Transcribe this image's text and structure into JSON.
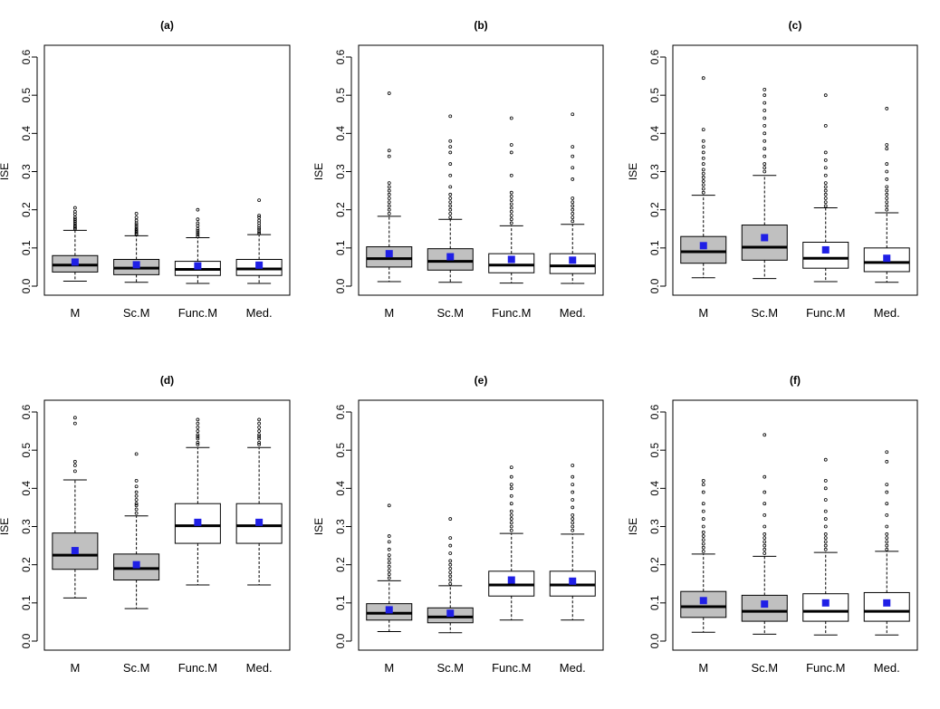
{
  "figure": {
    "colors": {
      "box_gray": "#c0c0c0",
      "box_white": "#ffffff",
      "mean_marker": "#1f1fe6",
      "line": "#000000"
    }
  },
  "chart_data": [
    {
      "type": "boxplot",
      "title": "(a)",
      "xlabel": "",
      "ylabel": "ISE",
      "ylim": [
        0,
        0.6
      ],
      "yticks": [
        "0.0",
        "0.1",
        "0.2",
        "0.3",
        "0.4",
        "0.5",
        "0.6"
      ],
      "categories": [
        "M",
        "Sc.M",
        "Func.M",
        "Med."
      ],
      "boxes": [
        {
          "fill": "gray",
          "whislo": 0.013,
          "q1": 0.037,
          "med": 0.055,
          "q3": 0.08,
          "whishi": 0.146,
          "mean": 0.063,
          "fliers": [
            0.15,
            0.153,
            0.156,
            0.16,
            0.165,
            0.17,
            0.175,
            0.18,
            0.188,
            0.195,
            0.205
          ]
        },
        {
          "fill": "gray",
          "whislo": 0.01,
          "q1": 0.03,
          "med": 0.047,
          "q3": 0.07,
          "whishi": 0.132,
          "mean": 0.056,
          "fliers": [
            0.135,
            0.138,
            0.142,
            0.146,
            0.15,
            0.155,
            0.16,
            0.165,
            0.172,
            0.18,
            0.19
          ]
        },
        {
          "fill": "white",
          "whislo": 0.007,
          "q1": 0.028,
          "med": 0.044,
          "q3": 0.065,
          "whishi": 0.127,
          "mean": 0.053,
          "fliers": [
            0.13,
            0.135,
            0.14,
            0.145,
            0.15,
            0.158,
            0.165,
            0.175,
            0.2
          ]
        },
        {
          "fill": "white",
          "whislo": 0.007,
          "q1": 0.028,
          "med": 0.045,
          "q3": 0.07,
          "whishi": 0.135,
          "mean": 0.055,
          "fliers": [
            0.138,
            0.142,
            0.148,
            0.152,
            0.158,
            0.165,
            0.172,
            0.18,
            0.185,
            0.225
          ]
        }
      ]
    },
    {
      "type": "boxplot",
      "title": "(b)",
      "xlabel": "",
      "ylabel": "ISE",
      "ylim": [
        0,
        0.6
      ],
      "yticks": [
        "0.0",
        "0.1",
        "0.2",
        "0.3",
        "0.4",
        "0.5",
        "0.6"
      ],
      "categories": [
        "M",
        "Sc.M",
        "Func.M",
        "Med."
      ],
      "boxes": [
        {
          "fill": "gray",
          "whislo": 0.012,
          "q1": 0.05,
          "med": 0.072,
          "q3": 0.103,
          "whishi": 0.183,
          "mean": 0.085,
          "fliers": [
            0.19,
            0.2,
            0.21,
            0.22,
            0.23,
            0.24,
            0.25,
            0.26,
            0.27,
            0.34,
            0.355,
            0.505
          ]
        },
        {
          "fill": "gray",
          "whislo": 0.01,
          "q1": 0.042,
          "med": 0.065,
          "q3": 0.098,
          "whishi": 0.175,
          "mean": 0.077,
          "fliers": [
            0.18,
            0.19,
            0.2,
            0.21,
            0.22,
            0.23,
            0.24,
            0.26,
            0.29,
            0.32,
            0.35,
            0.365,
            0.38,
            0.445
          ]
        },
        {
          "fill": "white",
          "whislo": 0.008,
          "q1": 0.035,
          "med": 0.055,
          "q3": 0.085,
          "whishi": 0.158,
          "mean": 0.07,
          "fliers": [
            0.165,
            0.175,
            0.185,
            0.195,
            0.205,
            0.215,
            0.225,
            0.235,
            0.245,
            0.29,
            0.35,
            0.37,
            0.44
          ]
        },
        {
          "fill": "white",
          "whislo": 0.007,
          "q1": 0.033,
          "med": 0.053,
          "q3": 0.085,
          "whishi": 0.162,
          "mean": 0.068,
          "fliers": [
            0.17,
            0.18,
            0.19,
            0.2,
            0.21,
            0.22,
            0.23,
            0.28,
            0.31,
            0.34,
            0.365,
            0.45
          ]
        }
      ]
    },
    {
      "type": "boxplot",
      "title": "(c)",
      "xlabel": "",
      "ylabel": "ISE",
      "ylim": [
        0,
        0.6
      ],
      "yticks": [
        "0.0",
        "0.1",
        "0.2",
        "0.3",
        "0.4",
        "0.5",
        "0.6"
      ],
      "categories": [
        "M",
        "Sc.M",
        "Func.M",
        "Med."
      ],
      "boxes": [
        {
          "fill": "gray",
          "whislo": 0.022,
          "q1": 0.06,
          "med": 0.09,
          "q3": 0.13,
          "whishi": 0.238,
          "mean": 0.106,
          "fliers": [
            0.245,
            0.255,
            0.265,
            0.275,
            0.285,
            0.295,
            0.305,
            0.32,
            0.335,
            0.35,
            0.365,
            0.38,
            0.41,
            0.545
          ]
        },
        {
          "fill": "gray",
          "whislo": 0.02,
          "q1": 0.068,
          "med": 0.102,
          "q3": 0.16,
          "whishi": 0.29,
          "mean": 0.127,
          "fliers": [
            0.3,
            0.31,
            0.32,
            0.34,
            0.36,
            0.38,
            0.4,
            0.42,
            0.44,
            0.46,
            0.48,
            0.5,
            0.515
          ]
        },
        {
          "fill": "white",
          "whislo": 0.012,
          "q1": 0.047,
          "med": 0.073,
          "q3": 0.115,
          "whishi": 0.205,
          "mean": 0.095,
          "fliers": [
            0.21,
            0.22,
            0.23,
            0.24,
            0.25,
            0.26,
            0.27,
            0.29,
            0.31,
            0.33,
            0.35,
            0.42,
            0.5
          ]
        },
        {
          "fill": "white",
          "whislo": 0.01,
          "q1": 0.038,
          "med": 0.062,
          "q3": 0.1,
          "whishi": 0.192,
          "mean": 0.073,
          "fliers": [
            0.2,
            0.21,
            0.22,
            0.23,
            0.24,
            0.25,
            0.26,
            0.28,
            0.3,
            0.32,
            0.36,
            0.37,
            0.465
          ]
        }
      ]
    },
    {
      "type": "boxplot",
      "title": "(d)",
      "xlabel": "",
      "ylabel": "ISE",
      "ylim": [
        0,
        0.6
      ],
      "yticks": [
        "0.0",
        "0.1",
        "0.2",
        "0.3",
        "0.4",
        "0.5",
        "0.6"
      ],
      "categories": [
        "M",
        "Sc.M",
        "Func.M",
        "Med."
      ],
      "boxes": [
        {
          "fill": "gray",
          "whislo": 0.113,
          "q1": 0.188,
          "med": 0.225,
          "q3": 0.283,
          "whishi": 0.422,
          "mean": 0.237,
          "fliers": [
            0.445,
            0.46,
            0.47,
            0.57,
            0.585
          ]
        },
        {
          "fill": "gray",
          "whislo": 0.085,
          "q1": 0.16,
          "med": 0.19,
          "q3": 0.228,
          "whishi": 0.328,
          "mean": 0.2,
          "fliers": [
            0.335,
            0.345,
            0.355,
            0.36,
            0.37,
            0.38,
            0.39,
            0.405,
            0.42,
            0.49
          ]
        },
        {
          "fill": "white",
          "whislo": 0.147,
          "q1": 0.256,
          "med": 0.302,
          "q3": 0.36,
          "whishi": 0.507,
          "mean": 0.311,
          "fliers": [
            0.515,
            0.52,
            0.53,
            0.535,
            0.54,
            0.55,
            0.56,
            0.57,
            0.58
          ]
        },
        {
          "fill": "white",
          "whislo": 0.147,
          "q1": 0.256,
          "med": 0.302,
          "q3": 0.36,
          "whishi": 0.507,
          "mean": 0.311,
          "fliers": [
            0.515,
            0.52,
            0.53,
            0.535,
            0.54,
            0.55,
            0.56,
            0.57,
            0.58
          ]
        }
      ]
    },
    {
      "type": "boxplot",
      "title": "(e)",
      "xlabel": "",
      "ylabel": "ISE",
      "ylim": [
        0,
        0.6
      ],
      "yticks": [
        "0.0",
        "0.1",
        "0.2",
        "0.3",
        "0.4",
        "0.5",
        "0.6"
      ],
      "categories": [
        "M",
        "Sc.M",
        "Func.M",
        "Med."
      ],
      "boxes": [
        {
          "fill": "gray",
          "whislo": 0.025,
          "q1": 0.055,
          "med": 0.073,
          "q3": 0.098,
          "whishi": 0.158,
          "mean": 0.082,
          "fliers": [
            0.165,
            0.175,
            0.185,
            0.195,
            0.205,
            0.215,
            0.225,
            0.24,
            0.26,
            0.275,
            0.355
          ]
        },
        {
          "fill": "gray",
          "whislo": 0.022,
          "q1": 0.048,
          "med": 0.063,
          "q3": 0.087,
          "whishi": 0.145,
          "mean": 0.073,
          "fliers": [
            0.15,
            0.16,
            0.17,
            0.18,
            0.19,
            0.2,
            0.21,
            0.23,
            0.25,
            0.27,
            0.32
          ]
        },
        {
          "fill": "white",
          "whislo": 0.055,
          "q1": 0.118,
          "med": 0.147,
          "q3": 0.183,
          "whishi": 0.282,
          "mean": 0.16,
          "fliers": [
            0.29,
            0.3,
            0.31,
            0.32,
            0.33,
            0.34,
            0.36,
            0.38,
            0.4,
            0.41,
            0.43,
            0.455
          ]
        },
        {
          "fill": "white",
          "whislo": 0.055,
          "q1": 0.118,
          "med": 0.147,
          "q3": 0.183,
          "whishi": 0.28,
          "mean": 0.157,
          "fliers": [
            0.29,
            0.3,
            0.31,
            0.32,
            0.33,
            0.35,
            0.37,
            0.39,
            0.41,
            0.43,
            0.46
          ]
        }
      ]
    },
    {
      "type": "boxplot",
      "title": "(f)",
      "xlabel": "",
      "ylabel": "ISE",
      "ylim": [
        0,
        0.6
      ],
      "yticks": [
        "0.0",
        "0.1",
        "0.2",
        "0.3",
        "0.4",
        "0.5",
        "0.6"
      ],
      "categories": [
        "M",
        "Sc.M",
        "Func.M",
        "Med."
      ],
      "boxes": [
        {
          "fill": "gray",
          "whislo": 0.023,
          "q1": 0.062,
          "med": 0.09,
          "q3": 0.13,
          "whishi": 0.228,
          "mean": 0.106,
          "fliers": [
            0.235,
            0.245,
            0.255,
            0.265,
            0.275,
            0.285,
            0.3,
            0.32,
            0.34,
            0.36,
            0.39,
            0.41,
            0.42
          ]
        },
        {
          "fill": "gray",
          "whislo": 0.018,
          "q1": 0.052,
          "med": 0.078,
          "q3": 0.12,
          "whishi": 0.222,
          "mean": 0.097,
          "fliers": [
            0.23,
            0.24,
            0.25,
            0.26,
            0.27,
            0.28,
            0.3,
            0.33,
            0.36,
            0.39,
            0.43,
            0.54
          ]
        },
        {
          "fill": "white",
          "whislo": 0.016,
          "q1": 0.052,
          "med": 0.078,
          "q3": 0.124,
          "whishi": 0.232,
          "mean": 0.1,
          "fliers": [
            0.24,
            0.25,
            0.26,
            0.27,
            0.28,
            0.3,
            0.32,
            0.34,
            0.37,
            0.4,
            0.42,
            0.475
          ]
        },
        {
          "fill": "white",
          "whislo": 0.016,
          "q1": 0.052,
          "med": 0.078,
          "q3": 0.127,
          "whishi": 0.235,
          "mean": 0.1,
          "fliers": [
            0.24,
            0.25,
            0.26,
            0.27,
            0.28,
            0.3,
            0.33,
            0.36,
            0.39,
            0.41,
            0.47,
            0.495
          ]
        }
      ]
    }
  ]
}
